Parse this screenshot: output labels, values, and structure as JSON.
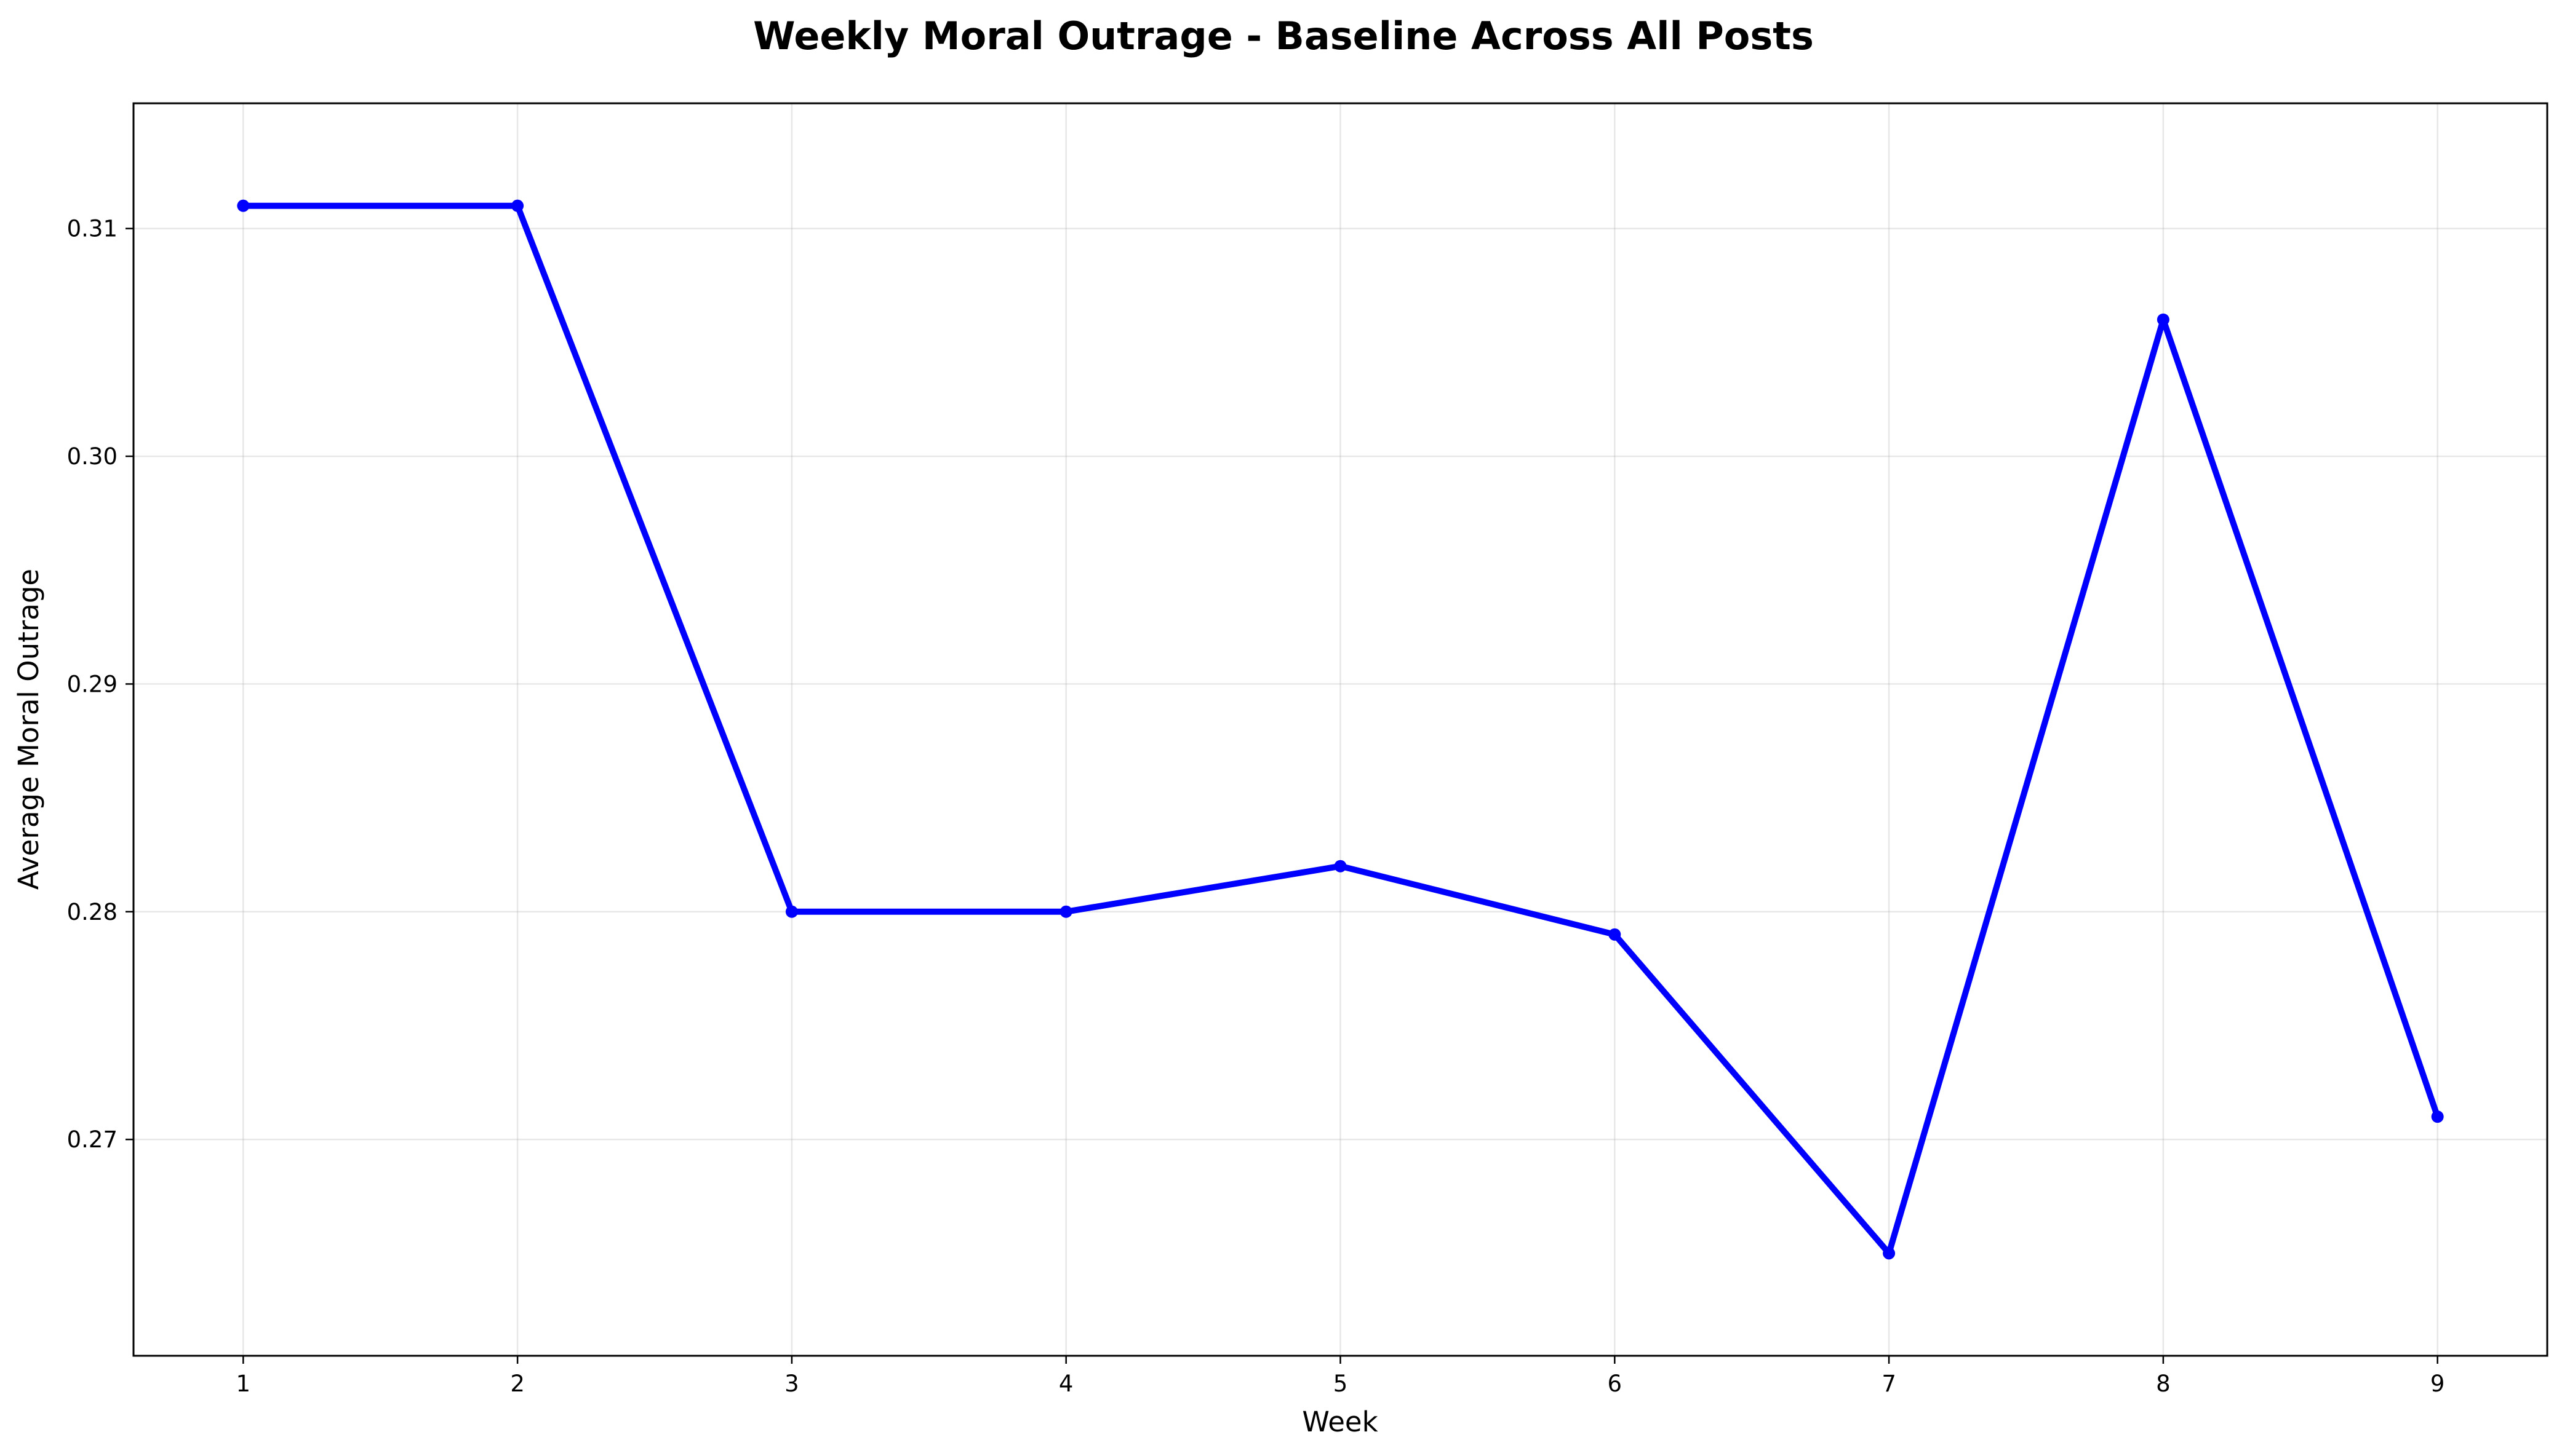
{
  "chart_data": {
    "type": "line",
    "title": "Weekly Moral Outrage - Baseline Across All Posts",
    "xlabel": "Week",
    "ylabel": "Average Moral Outrage",
    "x": [
      1,
      2,
      3,
      4,
      5,
      6,
      7,
      8,
      9
    ],
    "series": [
      {
        "values": [
          0.311,
          0.311,
          0.28,
          0.28,
          0.282,
          0.279,
          0.265,
          0.306,
          0.271
        ],
        "color": "#0000ff",
        "marker": "circle"
      }
    ],
    "xlim": [
      0.6,
      9.4
    ],
    "ylim": [
      0.2605,
      0.3155
    ],
    "xticks": [
      1,
      2,
      3,
      4,
      5,
      6,
      7,
      8,
      9
    ],
    "xtick_labels": [
      "1",
      "2",
      "3",
      "4",
      "5",
      "6",
      "7",
      "8",
      "9"
    ],
    "yticks": [
      0.27,
      0.28,
      0.29,
      0.3,
      0.31
    ],
    "ytick_labels": [
      "0.27",
      "0.28",
      "0.29",
      "0.30",
      "0.31"
    ],
    "grid": true,
    "legend": "none"
  }
}
